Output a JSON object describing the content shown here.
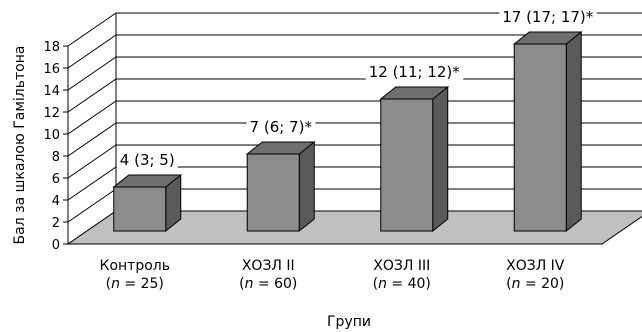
{
  "chart_data": {
    "type": "bar",
    "ylabel": "Бал за шкалою Гамільтона",
    "xlabel": "Групи",
    "ylim": [
      0,
      18
    ],
    "yticks": [
      0,
      2,
      4,
      6,
      8,
      10,
      12,
      14,
      16,
      18
    ],
    "grid": true,
    "categories": [
      {
        "name": "Контроль",
        "n_prefix": "(",
        "n_var": "n",
        "n_suffix": " = 25)"
      },
      {
        "name": "ХОЗЛ II",
        "n_prefix": "(",
        "n_var": "n",
        "n_suffix": " = 60)"
      },
      {
        "name": "ХОЗЛ III",
        "n_prefix": "(",
        "n_var": "n",
        "n_suffix": " = 40)"
      },
      {
        "name": "ХОЗЛ IV",
        "n_prefix": "(",
        "n_var": "n",
        "n_suffix": " = 20)"
      }
    ],
    "values": [
      4,
      7,
      12,
      17
    ],
    "data_labels": [
      "4 (3; 5)",
      "7 (6; 7)*",
      "12 (11; 12)*",
      "17 (17; 17)*"
    ],
    "colors": {
      "bar_front": "#8c8c8c",
      "bar_side": "#5a5a5a",
      "bar_top": "#6e6e6e",
      "floor": "#c0c0c0",
      "grid": "#000000"
    }
  }
}
